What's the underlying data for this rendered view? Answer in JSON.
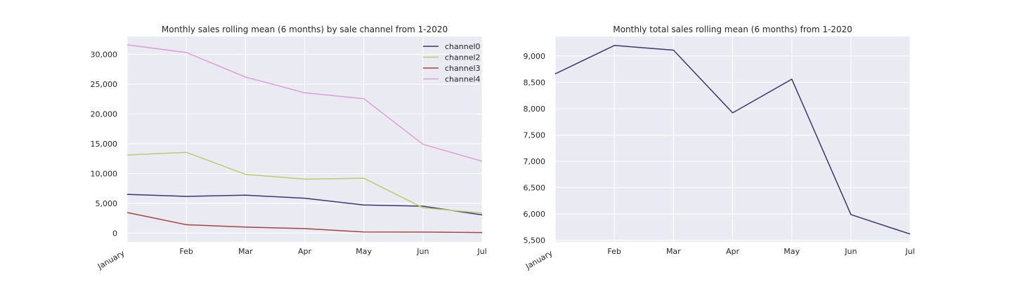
{
  "colors": {
    "background": "#eaeaf2",
    "grid": "#ffffff",
    "channel0": "#3a3675",
    "channel2": "#b5cf6b",
    "channel3": "#a9433e",
    "channel4": "#de9ed6",
    "total": "#3a3675"
  },
  "chart_data": [
    {
      "type": "line",
      "title": "Monthly sales rolling mean (6 months) by sale channel from 1-2020",
      "xlabel": "",
      "ylabel": "",
      "categories": [
        "January",
        "Feb",
        "Mar",
        "Apr",
        "May",
        "Jun",
        "Jul"
      ],
      "ylim": [
        -1500,
        33000
      ],
      "yticks": [
        0,
        5000,
        10000,
        15000,
        20000,
        25000,
        30000
      ],
      "ytick_labels": [
        "0",
        "5,000",
        "10,000",
        "15,000",
        "20,000",
        "25,000",
        "30,000"
      ],
      "grid": true,
      "legend_position": "top-right",
      "series": [
        {
          "name": "channel0",
          "color_key": "channel0",
          "values": [
            6500,
            6150,
            6350,
            5850,
            4700,
            4500,
            3050
          ]
        },
        {
          "name": "channel2",
          "color_key": "channel2",
          "values": [
            13100,
            13550,
            9850,
            9050,
            9200,
            4250,
            3350
          ]
        },
        {
          "name": "channel3",
          "color_key": "channel3",
          "values": [
            3450,
            1400,
            1000,
            750,
            180,
            160,
            80
          ]
        },
        {
          "name": "channel4",
          "color_key": "channel4",
          "values": [
            31600,
            30300,
            26200,
            23550,
            22550,
            14900,
            12050
          ]
        }
      ]
    },
    {
      "type": "line",
      "title": "Monthly total sales rolling mean (6 months) from 1-2020",
      "xlabel": "",
      "ylabel": "",
      "categories": [
        "January",
        "Feb",
        "Mar",
        "Apr",
        "May",
        "Jun",
        "Jul"
      ],
      "ylim": [
        5470,
        9370
      ],
      "yticks": [
        5500,
        6000,
        6500,
        7000,
        7500,
        8000,
        8500,
        9000
      ],
      "ytick_labels": [
        "5,500",
        "6,000",
        "6,500",
        "7,000",
        "7,500",
        "8,000",
        "8,500",
        "9,000"
      ],
      "grid": true,
      "series": [
        {
          "color_key": "total",
          "values": [
            8660,
            9200,
            9110,
            7920,
            8560,
            5990,
            5620
          ]
        }
      ]
    }
  ]
}
